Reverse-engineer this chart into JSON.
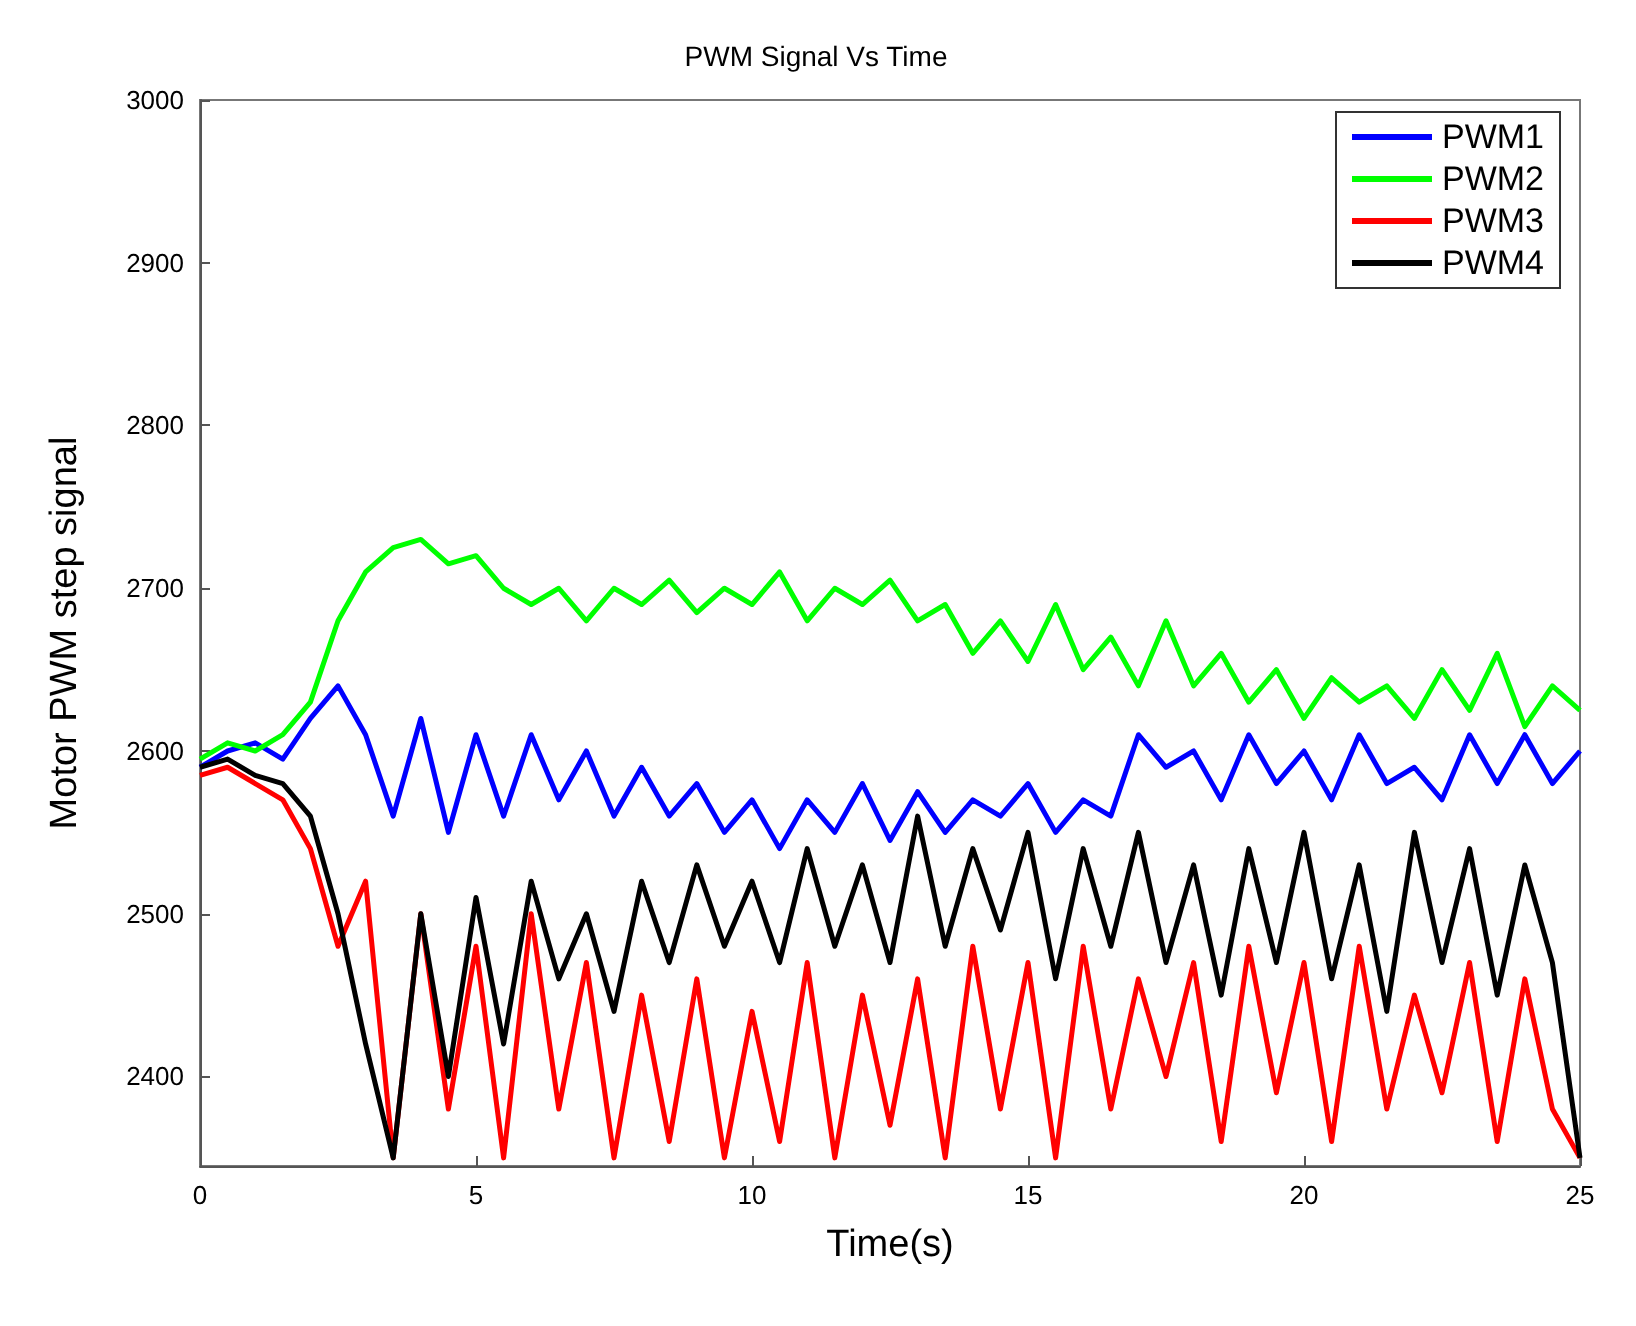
{
  "chart_data": {
    "type": "line",
    "title": "PWM Signal Vs Time",
    "xlabel": "Time(s)",
    "ylabel": "Motor PWM step signal",
    "x": [
      0,
      0.5,
      1,
      1.5,
      2,
      2.5,
      3,
      3.5,
      4,
      4.5,
      5,
      5.5,
      6,
      6.5,
      7,
      7.5,
      8,
      8.5,
      9,
      9.5,
      10,
      10.5,
      11,
      11.5,
      12,
      12.5,
      13,
      13.5,
      14,
      14.5,
      15,
      15.5,
      16,
      16.5,
      17,
      17.5,
      18,
      18.5,
      19,
      19.5,
      20,
      20.5,
      21,
      21.5,
      22,
      22.5,
      23,
      23.5,
      24,
      24.5,
      25
    ],
    "series": [
      {
        "name": "PWM1",
        "color": "#0000ff",
        "values": [
          2590,
          2600,
          2605,
          2595,
          2620,
          2640,
          2610,
          2560,
          2620,
          2550,
          2610,
          2560,
          2610,
          2570,
          2600,
          2560,
          2590,
          2560,
          2580,
          2550,
          2570,
          2540,
          2570,
          2550,
          2580,
          2545,
          2575,
          2550,
          2570,
          2560,
          2580,
          2550,
          2570,
          2560,
          2610,
          2590,
          2600,
          2570,
          2610,
          2580,
          2600,
          2570,
          2610,
          2580,
          2590,
          2570,
          2610,
          2580,
          2610,
          2580,
          2600
        ]
      },
      {
        "name": "PWM2",
        "color": "#00ff00",
        "values": [
          2595,
          2605,
          2600,
          2610,
          2630,
          2680,
          2710,
          2725,
          2730,
          2715,
          2720,
          2700,
          2690,
          2700,
          2680,
          2700,
          2690,
          2705,
          2685,
          2700,
          2690,
          2710,
          2680,
          2700,
          2690,
          2705,
          2680,
          2690,
          2660,
          2680,
          2655,
          2690,
          2650,
          2670,
          2640,
          2680,
          2640,
          2660,
          2630,
          2650,
          2620,
          2645,
          2630,
          2640,
          2620,
          2650,
          2625,
          2660,
          2615,
          2640,
          2625
        ]
      },
      {
        "name": "PWM3",
        "color": "#ff0000",
        "values": [
          2585,
          2590,
          2580,
          2570,
          2540,
          2480,
          2520,
          2350,
          2500,
          2380,
          2480,
          2350,
          2500,
          2380,
          2470,
          2350,
          2450,
          2360,
          2460,
          2350,
          2440,
          2360,
          2470,
          2350,
          2450,
          2370,
          2460,
          2350,
          2480,
          2380,
          2470,
          2350,
          2480,
          2380,
          2460,
          2400,
          2470,
          2360,
          2480,
          2390,
          2470,
          2360,
          2480,
          2380,
          2450,
          2390,
          2470,
          2360,
          2460,
          2380,
          2350
        ]
      },
      {
        "name": "PWM4",
        "color": "#000000",
        "values": [
          2590,
          2595,
          2585,
          2580,
          2560,
          2500,
          2420,
          2350,
          2500,
          2400,
          2510,
          2420,
          2520,
          2460,
          2500,
          2440,
          2520,
          2470,
          2530,
          2480,
          2520,
          2470,
          2540,
          2480,
          2530,
          2470,
          2560,
          2480,
          2540,
          2490,
          2550,
          2460,
          2540,
          2480,
          2550,
          2470,
          2530,
          2450,
          2540,
          2470,
          2550,
          2460,
          2530,
          2440,
          2550,
          2470,
          2540,
          2450,
          2530,
          2470,
          2350
        ]
      }
    ],
    "xlim": [
      0,
      25
    ],
    "xticks": [
      0,
      5,
      10,
      15,
      20,
      25
    ],
    "ylim": [
      2345,
      3000
    ],
    "yticks": [
      2400,
      2500,
      2600,
      2700,
      2800,
      2900,
      3000
    ],
    "grid": false,
    "legend": "top right",
    "marker": "none",
    "line_style": "solid"
  }
}
